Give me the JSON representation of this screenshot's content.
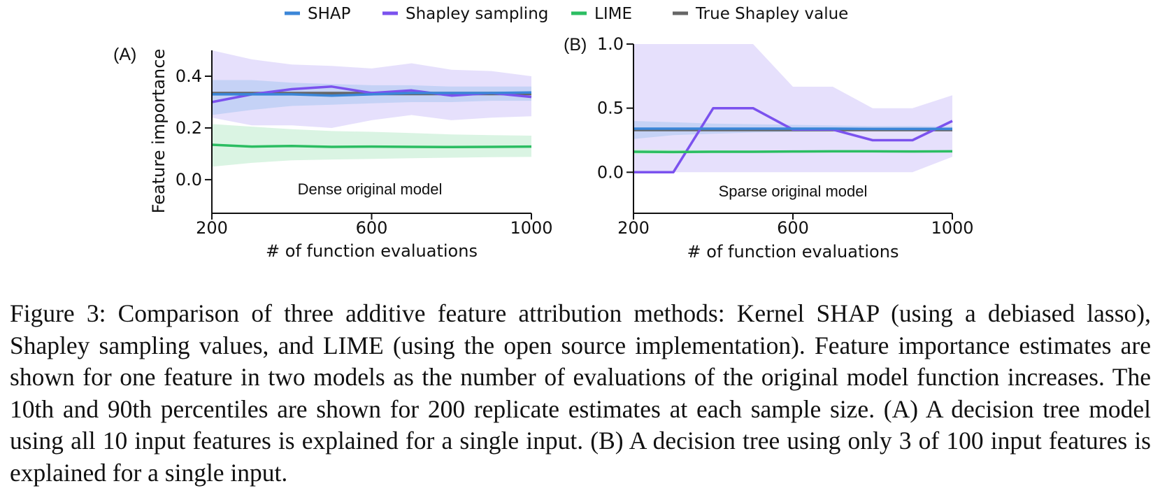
{
  "legend": [
    {
      "label": "SHAP",
      "color": "#3b86d8"
    },
    {
      "label": "Shapley sampling",
      "color": "#7b52ee"
    },
    {
      "label": "LIME",
      "color": "#2bbd62"
    },
    {
      "label": "True Shapley value",
      "color": "#666666"
    }
  ],
  "chart_data": [
    {
      "type": "line",
      "panel_label": "(A)",
      "annotation": "Dense original model",
      "xlabel": "# of function evaluations",
      "ylabel": "Feature importance",
      "xlim": [
        200,
        1000
      ],
      "ylim": [
        -0.13,
        0.5
      ],
      "xticks": [
        200,
        600,
        1000
      ],
      "yticks": [
        0.0,
        0.2,
        0.4
      ],
      "ytick_labels": [
        "0.0",
        "0.2",
        "0.4"
      ],
      "x": [
        200,
        300,
        400,
        500,
        600,
        700,
        800,
        900,
        1000
      ],
      "series": [
        {
          "name": "Shapley sampling",
          "color": "#7b52ee",
          "fill": "#ddd6fb",
          "values": [
            0.3,
            0.33,
            0.35,
            0.36,
            0.335,
            0.345,
            0.325,
            0.335,
            0.32
          ],
          "p10": [
            0.24,
            0.21,
            0.21,
            0.2,
            0.23,
            0.25,
            0.23,
            0.24,
            0.245
          ],
          "p90": [
            0.5,
            0.465,
            0.445,
            0.44,
            0.43,
            0.45,
            0.425,
            0.42,
            0.4
          ]
        },
        {
          "name": "SHAP",
          "color": "#3b86d8",
          "fill": "#b9cdf4",
          "values": [
            0.33,
            0.33,
            0.33,
            0.325,
            0.33,
            0.335,
            0.335,
            0.335,
            0.337
          ],
          "p10": [
            0.25,
            0.27,
            0.285,
            0.29,
            0.295,
            0.3,
            0.3,
            0.305,
            0.305
          ],
          "p90": [
            0.385,
            0.385,
            0.375,
            0.37,
            0.365,
            0.365,
            0.36,
            0.36,
            0.36
          ]
        },
        {
          "name": "LIME",
          "color": "#2bbd62",
          "fill": "#cdf0da",
          "values": [
            0.135,
            0.128,
            0.13,
            0.127,
            0.128,
            0.127,
            0.126,
            0.127,
            0.128
          ],
          "p10": [
            0.05,
            0.065,
            0.075,
            0.078,
            0.08,
            0.083,
            0.085,
            0.087,
            0.088
          ],
          "p90": [
            0.215,
            0.205,
            0.195,
            0.188,
            0.185,
            0.18,
            0.175,
            0.172,
            0.17
          ]
        },
        {
          "name": "True Shapley value",
          "color": "#666666",
          "values": [
            0.333,
            0.333,
            0.333,
            0.333,
            0.333,
            0.333,
            0.333,
            0.333,
            0.333
          ]
        }
      ],
      "grid": false
    },
    {
      "type": "line",
      "panel_label": "(B)",
      "annotation": "Sparse original model",
      "xlabel": "# of function evaluations",
      "ylabel": "",
      "xlim": [
        200,
        1000
      ],
      "ylim": [
        -0.32,
        1.0
      ],
      "xticks": [
        200,
        600,
        1000
      ],
      "yticks": [
        0.0,
        0.5,
        1.0
      ],
      "ytick_labels": [
        "0.0",
        "0.5",
        "1.0"
      ],
      "x": [
        200,
        300,
        400,
        500,
        600,
        700,
        800,
        900,
        1000
      ],
      "series": [
        {
          "name": "Shapley sampling",
          "color": "#7b52ee",
          "fill": "#ddd6fb",
          "values": [
            0.0,
            0.0,
            0.5,
            0.5,
            0.333,
            0.333,
            0.25,
            0.25,
            0.4
          ],
          "p10": [
            0.0,
            0.0,
            0.0,
            0.0,
            0.0,
            0.0,
            0.0,
            0.0,
            0.12
          ],
          "p90": [
            1.0,
            1.0,
            1.0,
            1.0,
            0.667,
            0.667,
            0.5,
            0.5,
            0.6
          ]
        },
        {
          "name": "SHAP",
          "color": "#3b86d8",
          "fill": "#b9cdf4",
          "values": [
            0.34,
            0.34,
            0.34,
            0.34,
            0.34,
            0.34,
            0.338,
            0.338,
            0.338
          ],
          "p10": [
            0.26,
            0.29,
            0.3,
            0.31,
            0.315,
            0.318,
            0.32,
            0.32,
            0.32
          ],
          "p90": [
            0.4,
            0.39,
            0.38,
            0.375,
            0.37,
            0.365,
            0.36,
            0.36,
            0.355
          ]
        },
        {
          "name": "LIME",
          "color": "#2bbd62",
          "fill": "#cdf0da",
          "values": [
            0.16,
            0.158,
            0.16,
            0.16,
            0.162,
            0.163,
            0.163,
            0.162,
            0.163
          ],
          "p10": [
            0.14,
            0.145,
            0.148,
            0.15,
            0.152,
            0.153,
            0.154,
            0.155,
            0.156
          ],
          "p90": [
            0.18,
            0.175,
            0.172,
            0.17,
            0.17,
            0.17,
            0.17,
            0.17,
            0.17
          ]
        },
        {
          "name": "True Shapley value",
          "color": "#666666",
          "values": [
            0.333,
            0.333,
            0.333,
            0.333,
            0.333,
            0.333,
            0.333,
            0.333,
            0.333
          ]
        }
      ],
      "grid": false
    }
  ],
  "caption": "Figure 3: Comparison of three additive feature attribution methods: Kernel SHAP (using a debiased lasso), Shapley sampling values, and LIME (using the open source implementation). Feature importance estimates are shown for one feature in two models as the number of evaluations of the original model function increases. The 10th and 90th percentiles are shown for 200 replicate estimates at each sample size. (A) A decision tree model using all 10 input features is explained for a single input. (B) A decision tree using only 3 of 100 input features is explained for a single input."
}
